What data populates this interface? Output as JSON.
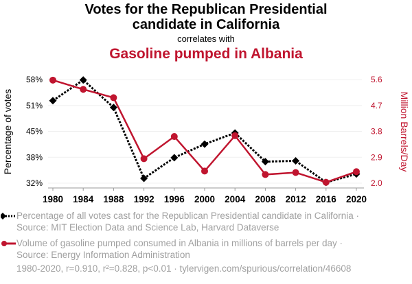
{
  "chart_data": {
    "type": "line",
    "title_line1": "Votes for the Republican Presidential",
    "title_line2": "candidate in California",
    "subtitle": "correlates with",
    "title2": "Gasoline pumped in Albania",
    "x": [
      1980,
      1984,
      1988,
      1992,
      1996,
      2000,
      2004,
      2008,
      2012,
      2016,
      2020
    ],
    "x_tick_labels": [
      "1980",
      "1984",
      "1988",
      "1992",
      "1996",
      "2000",
      "2004",
      "2008",
      "2012",
      "2016",
      "2020"
    ],
    "series": [
      {
        "name": "votes",
        "axis": "left",
        "color": "#000000",
        "style": "dotted",
        "marker": "diamond",
        "values": [
          52.7,
          57.9,
          51.0,
          33.2,
          38.4,
          41.8,
          44.6,
          37.4,
          37.6,
          32.2,
          34.3
        ]
      },
      {
        "name": "gasoline",
        "axis": "right",
        "color": "#c0152f",
        "style": "solid",
        "marker": "circle",
        "values": [
          5.58,
          5.26,
          4.97,
          2.85,
          3.62,
          2.42,
          3.65,
          2.3,
          2.37,
          2.03,
          2.4
        ]
      }
    ],
    "ylabel_left": "Percentage of votes",
    "ylabel_right": "Million Barrels/Day",
    "yticks_left": [
      "58%",
      "51%",
      "45%",
      "38%",
      "32%"
    ],
    "yticks_right": [
      "5.6",
      "4.7",
      "3.8",
      "2.9",
      "2.0"
    ],
    "ylim_left": [
      32,
      58
    ],
    "ylim_right": [
      2.0,
      5.6
    ],
    "grid": true
  },
  "legend": {
    "series1": "Percentage of all votes cast for the Republican Presidential candidate in California · Source: MIT Election Data and Science Lab, Harvard Dataverse",
    "series2": "Volume of gasoline pumped consumed in Albania in millions of barrels per day · Source: Energy Information Administration"
  },
  "footer": "1980-2020, r=0.910, r²=0.828, p<0.01 · tylervigen.com/spurious/correlation/46608"
}
